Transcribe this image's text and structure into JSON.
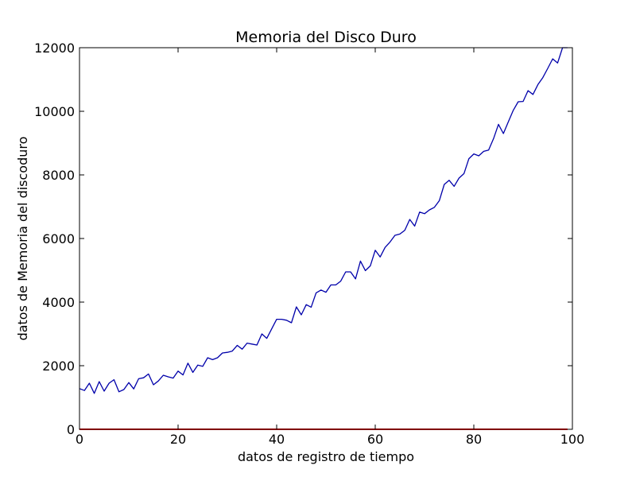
{
  "chart_data": {
    "type": "line",
    "title": "Memoria del Disco Duro",
    "xlabel": "datos de registro de tiempo",
    "ylabel": "datos de Memoria del discoduro",
    "xlim": [
      0,
      100
    ],
    "ylim": [
      0,
      12000
    ],
    "xticks": [
      0,
      20,
      40,
      60,
      80,
      100
    ],
    "yticks": [
      0,
      2000,
      4000,
      6000,
      8000,
      10000,
      12000
    ],
    "xtick_labels": [
      "0",
      "20",
      "40",
      "60",
      "80",
      "100"
    ],
    "ytick_labels": [
      "0",
      "2000",
      "4000",
      "6000",
      "8000",
      "10000",
      "12000"
    ],
    "grid": false,
    "series": [
      {
        "color": "#0000aa",
        "x": [
          0,
          1,
          2,
          3,
          4,
          5,
          6,
          7,
          8,
          9,
          10,
          11,
          12,
          13,
          14,
          15,
          16,
          17,
          18,
          19,
          20,
          21,
          22,
          23,
          24,
          25,
          26,
          27,
          28,
          29,
          30,
          31,
          32,
          33,
          34,
          35,
          36,
          37,
          38,
          39,
          40,
          41,
          42,
          43,
          44,
          45,
          46,
          47,
          48,
          49,
          50,
          51,
          52,
          53,
          54,
          55,
          56,
          57,
          58,
          59,
          60,
          61,
          62,
          63,
          64,
          65,
          66,
          67,
          68,
          69,
          70,
          71,
          72,
          73,
          74,
          75,
          76,
          77,
          78,
          79,
          80,
          81,
          82,
          83,
          84,
          85,
          86,
          87,
          88,
          89,
          90,
          91,
          92,
          93,
          94,
          95,
          96,
          97,
          98,
          99
        ],
        "y": [
          1280,
          1220,
          1450,
          1130,
          1500,
          1200,
          1450,
          1560,
          1180,
          1250,
          1470,
          1270,
          1590,
          1620,
          1740,
          1400,
          1520,
          1700,
          1650,
          1610,
          1830,
          1710,
          2080,
          1790,
          2020,
          1980,
          2250,
          2190,
          2250,
          2400,
          2420,
          2460,
          2640,
          2520,
          2710,
          2680,
          2650,
          3000,
          2860,
          3160,
          3460,
          3460,
          3430,
          3350,
          3850,
          3600,
          3920,
          3840,
          4290,
          4380,
          4310,
          4540,
          4540,
          4660,
          4950,
          4950,
          4730,
          5290,
          4990,
          5140,
          5630,
          5420,
          5720,
          5890,
          6100,
          6140,
          6260,
          6600,
          6390,
          6830,
          6780,
          6900,
          6980,
          7190,
          7700,
          7830,
          7640,
          7900,
          8040,
          8510,
          8660,
          8600,
          8740,
          8780,
          9140,
          9590,
          9300,
          9670,
          10030,
          10300,
          10310,
          10650,
          10530,
          10840,
          11060,
          11350,
          11650,
          11520,
          12000,
          12000
        ]
      },
      {
        "color": "#ff0000",
        "x": [
          0,
          99
        ],
        "y": [
          0,
          0
        ]
      }
    ]
  }
}
